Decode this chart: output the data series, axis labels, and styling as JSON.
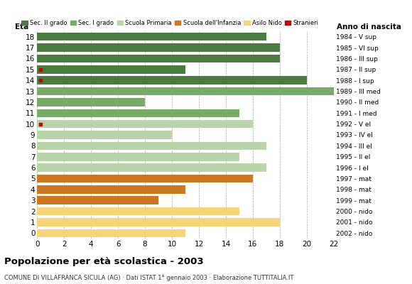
{
  "ages": [
    18,
    17,
    16,
    15,
    14,
    13,
    12,
    11,
    10,
    9,
    8,
    7,
    6,
    5,
    4,
    3,
    2,
    1,
    0
  ],
  "years": [
    "1984 - V sup",
    "1985 - VI sup",
    "1986 - III sup",
    "1987 - II sup",
    "1988 - I sup",
    "1989 - III med",
    "1990 - II med",
    "1991 - I med",
    "1992 - V el",
    "1993 - IV el",
    "1994 - III el",
    "1995 - II el",
    "1996 - I el",
    "1997 - mat",
    "1998 - mat",
    "1999 - mat",
    "2000 - nido",
    "2001 - nido",
    "2002 - nido"
  ],
  "values": [
    17,
    18,
    18,
    11,
    20,
    22,
    8,
    15,
    16,
    10,
    17,
    15,
    17,
    16,
    11,
    9,
    15,
    18,
    11
  ],
  "stranieri": [
    0,
    0,
    0,
    1,
    1,
    0,
    0,
    0,
    1,
    0,
    0,
    0,
    0,
    0,
    0,
    0,
    0,
    0,
    0
  ],
  "categories": {
    "Sec. II grado": [
      18,
      17,
      16,
      15,
      14
    ],
    "Sec. I grado": [
      13,
      12,
      11
    ],
    "Scuola Primaria": [
      10,
      9,
      8,
      7,
      6
    ],
    "Scuola dell'Infanzia": [
      5,
      4,
      3
    ],
    "Asilo Nido": [
      2,
      1,
      0
    ]
  },
  "colors": {
    "Sec. II grado": "#4a7c3f",
    "Sec. I grado": "#7aaa6a",
    "Scuola Primaria": "#b8d4a8",
    "Scuola dell'Infanzia": "#cc7722",
    "Asilo Nido": "#f5d47a"
  },
  "stranieri_color": "#cc0000",
  "title": "Popolazione per età scolastica - 2003",
  "subtitle": "COMUNE DI VILLAFRANCA SICULA (AG) · Dati ISTAT 1° gennaio 2003 · Elaborazione TUTTITALIA.IT",
  "xlim": [
    0,
    22
  ],
  "xticks": [
    0,
    2,
    4,
    6,
    8,
    10,
    12,
    14,
    16,
    18,
    20,
    22
  ],
  "ylabel_eta": "Età",
  "ylabel_anno": "Anno di nascita",
  "bg_color": "#ffffff",
  "legend_order": [
    "Sec. II grado",
    "Sec. I grado",
    "Scuola Primaria",
    "Scuola dell'Infanzia",
    "Asilo Nido",
    "Stranieri"
  ]
}
